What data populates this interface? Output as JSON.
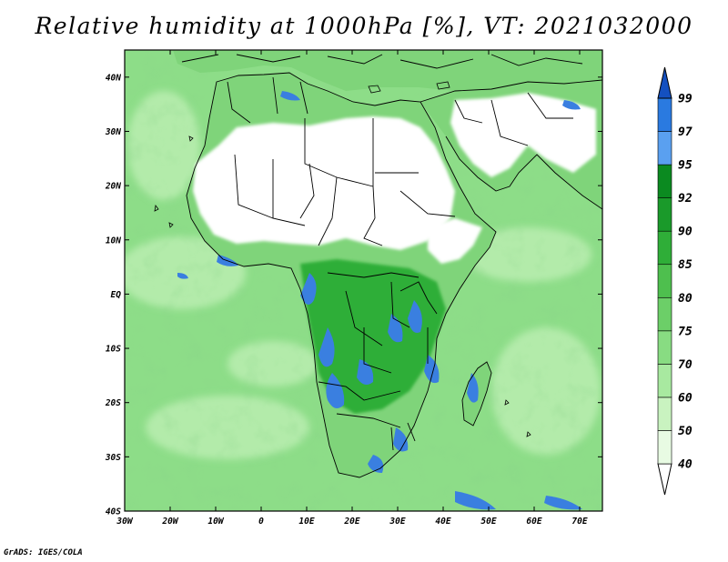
{
  "title": "Relative humidity at 1000hPa [%], VT: 2021032000",
  "credit": "GrADS: IGES/COLA",
  "map": {
    "lon_range": [
      -30,
      75
    ],
    "lat_range": [
      -40,
      45
    ],
    "lon_ticks": [
      {
        "value": -30,
        "label": "30W"
      },
      {
        "value": -20,
        "label": "20W"
      },
      {
        "value": -10,
        "label": "10W"
      },
      {
        "value": 0,
        "label": "0"
      },
      {
        "value": 10,
        "label": "10E"
      },
      {
        "value": 20,
        "label": "20E"
      },
      {
        "value": 30,
        "label": "30E"
      },
      {
        "value": 40,
        "label": "40E"
      },
      {
        "value": 50,
        "label": "50E"
      },
      {
        "value": 60,
        "label": "60E"
      },
      {
        "value": 70,
        "label": "70E"
      }
    ],
    "lat_ticks": [
      {
        "value": 40,
        "label": "40N"
      },
      {
        "value": 30,
        "label": "30N"
      },
      {
        "value": 20,
        "label": "20N"
      },
      {
        "value": 10,
        "label": "10N"
      },
      {
        "value": 0,
        "label": "EQ"
      },
      {
        "value": -10,
        "label": "10S"
      },
      {
        "value": -20,
        "label": "20S"
      },
      {
        "value": -30,
        "label": "30S"
      },
      {
        "value": -40,
        "label": "40S"
      }
    ]
  },
  "colorbar": {
    "levels": [
      40,
      50,
      60,
      70,
      75,
      80,
      85,
      90,
      92,
      95,
      97,
      99
    ],
    "colors": [
      "#ffffff",
      "#e8fbe3",
      "#c9f3c0",
      "#a8e9a0",
      "#88dc82",
      "#6ccf68",
      "#4ebf4e",
      "#2fae38",
      "#1a9a2a",
      "#0b8a20",
      "#5aa0f0",
      "#2a7ae0",
      "#1450c0"
    ]
  },
  "palette": {
    "ocean": "#8ddd88",
    "ocean_light": "#b3ebaa",
    "dry": "#ffffff",
    "moist": "#2fae38",
    "wet": "#3a7fe0",
    "border": "#000000"
  }
}
